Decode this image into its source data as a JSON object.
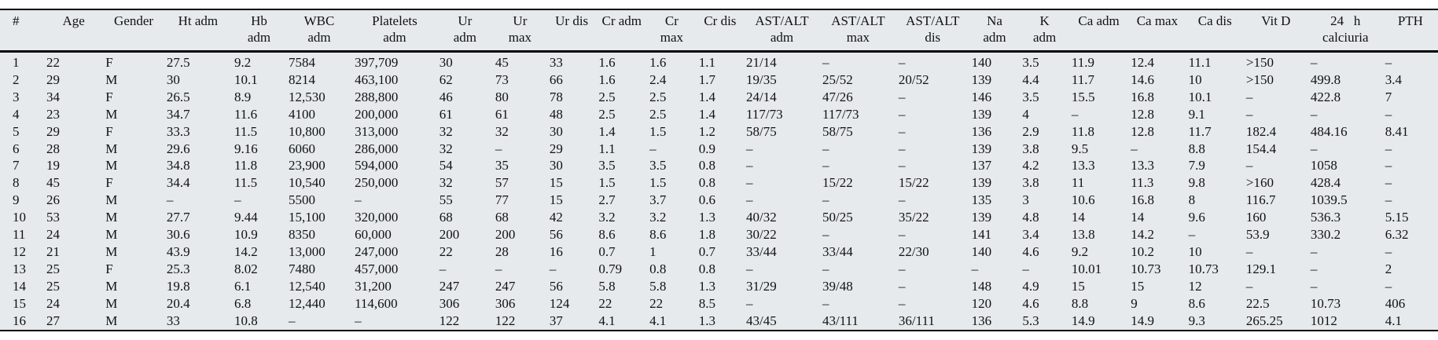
{
  "colors": {
    "table_background": "#e6eaec",
    "rule_color": "#000000",
    "text_color": "#111111",
    "page_background": "#ffffff"
  },
  "table": {
    "columns": [
      {
        "id": "num",
        "line1": "#",
        "line2": ""
      },
      {
        "id": "age",
        "line1": "Age",
        "line2": ""
      },
      {
        "id": "gender",
        "line1": "Gender",
        "line2": ""
      },
      {
        "id": "ht-adm",
        "line1": "Ht adm",
        "line2": ""
      },
      {
        "id": "hb-adm",
        "line1": "Hb",
        "line2": "adm"
      },
      {
        "id": "wbc-adm",
        "line1": "WBC",
        "line2": "adm"
      },
      {
        "id": "platelets-adm",
        "line1": "Platelets",
        "line2": "adm"
      },
      {
        "id": "ur-adm",
        "line1": "Ur",
        "line2": "adm"
      },
      {
        "id": "ur-max",
        "line1": "Ur",
        "line2": "max"
      },
      {
        "id": "ur-dis",
        "line1": "Ur dis",
        "line2": ""
      },
      {
        "id": "cr-adm",
        "line1": "Cr adm",
        "line2": ""
      },
      {
        "id": "cr-max",
        "line1": "Cr",
        "line2": "max"
      },
      {
        "id": "cr-dis",
        "line1": "Cr dis",
        "line2": ""
      },
      {
        "id": "ast-alt-adm",
        "line1": "AST/ALT",
        "line2": "adm"
      },
      {
        "id": "ast-alt-max",
        "line1": "AST/ALT",
        "line2": "max"
      },
      {
        "id": "ast-alt-dis",
        "line1": "AST/ALT",
        "line2": "dis"
      },
      {
        "id": "na-adm",
        "line1": "Na",
        "line2": "adm"
      },
      {
        "id": "k-adm",
        "line1": "K",
        "line2": "adm"
      },
      {
        "id": "ca-adm",
        "line1": "Ca adm",
        "line2": ""
      },
      {
        "id": "ca-max",
        "line1": "Ca max",
        "line2": ""
      },
      {
        "id": "ca-dis",
        "line1": "Ca dis",
        "line2": ""
      },
      {
        "id": "vit-d",
        "line1": "Vit D",
        "line2": ""
      },
      {
        "id": "calciuria-24h",
        "line1": "24   h",
        "line2": "calciuria"
      },
      {
        "id": "pth",
        "line1": "PTH",
        "line2": ""
      }
    ],
    "rows": [
      [
        "1",
        "22",
        "F",
        "27.5",
        "9.2",
        "7584",
        "397,709",
        "30",
        "45",
        "33",
        "1.6",
        "1.6",
        "1.1",
        "21/14",
        "–",
        "–",
        "140",
        "3.5",
        "11.9",
        "12.4",
        "11.1",
        ">150",
        "–",
        "–"
      ],
      [
        "2",
        "29",
        "M",
        "30",
        "10.1",
        "8214",
        "463,100",
        "62",
        "73",
        "66",
        "1.6",
        "2.4",
        "1.7",
        "19/35",
        "25/52",
        "20/52",
        "139",
        "4.4",
        "11.7",
        "14.6",
        "10",
        ">150",
        "499.8",
        "3.4"
      ],
      [
        "3",
        "34",
        "F",
        "26.5",
        "8.9",
        "12,530",
        "288,800",
        "46",
        "80",
        "78",
        "2.5",
        "2.5",
        "1.4",
        "24/14",
        "47/26",
        "–",
        "146",
        "3.5",
        "15.5",
        "16.8",
        "10.1",
        "–",
        "422.8",
        "7"
      ],
      [
        "4",
        "23",
        "M",
        "34.7",
        "11.6",
        "4100",
        "200,000",
        "61",
        "61",
        "48",
        "2.5",
        "2.5",
        "1.4",
        "117/73",
        "117/73",
        "–",
        "139",
        "4",
        "–",
        "12.8",
        "9.1",
        "–",
        "–",
        "–"
      ],
      [
        "5",
        "29",
        "F",
        "33.3",
        "11.5",
        "10,800",
        "313,000",
        "32",
        "32",
        "30",
        "1.4",
        "1.5",
        "1.2",
        "58/75",
        "58/75",
        "–",
        "136",
        "2.9",
        "11.8",
        "12.8",
        "11.7",
        "182.4",
        "484.16",
        "8.41"
      ],
      [
        "6",
        "28",
        "M",
        "29.6",
        "9.16",
        "6060",
        "286,000",
        "32",
        "–",
        "29",
        "1.1",
        "–",
        "0.9",
        "–",
        "–",
        "–",
        "139",
        "3.8",
        "9.5",
        "–",
        "8.8",
        "154.4",
        "–",
        "–"
      ],
      [
        "7",
        "19",
        "M",
        "34.8",
        "11.8",
        "23,900",
        "594,000",
        "54",
        "35",
        "30",
        "3.5",
        "3.5",
        "0.8",
        "–",
        "–",
        "–",
        "137",
        "4.2",
        "13.3",
        "13.3",
        "7.9",
        "–",
        "1058",
        "–"
      ],
      [
        "8",
        "45",
        "F",
        "34.4",
        "11.5",
        "10,540",
        "250,000",
        "32",
        "57",
        "15",
        "1.5",
        "1.5",
        "0.8",
        "–",
        "15/22",
        "15/22",
        "139",
        "3.8",
        "11",
        "11.3",
        "9.8",
        ">160",
        "428.4",
        "–"
      ],
      [
        "9",
        "26",
        "M",
        "–",
        "–",
        "5500",
        "–",
        "55",
        "77",
        "15",
        "2.7",
        "3.7",
        "0.6",
        "–",
        "–",
        "–",
        "135",
        "3",
        "10.6",
        "16.8",
        "8",
        "116.7",
        "1039.5",
        "–"
      ],
      [
        "10",
        "53",
        "M",
        "27.7",
        "9.44",
        "15,100",
        "320,000",
        "68",
        "68",
        "42",
        "3.2",
        "3.2",
        "1.3",
        "40/32",
        "50/25",
        "35/22",
        "139",
        "4.8",
        "14",
        "14",
        "9.6",
        "160",
        "536.3",
        "5.15"
      ],
      [
        "11",
        "24",
        "M",
        "30.6",
        "10.9",
        "8350",
        "60,000",
        "200",
        "200",
        "56",
        "8.6",
        "8.6",
        "1.8",
        "30/22",
        "–",
        "–",
        "141",
        "3.4",
        "13.8",
        "14.2",
        "–",
        "53.9",
        "330.2",
        "6.32"
      ],
      [
        "12",
        "21",
        "M",
        "43.9",
        "14.2",
        "13,000",
        "247,000",
        "22",
        "28",
        "16",
        "0.7",
        "1",
        "0.7",
        "33/44",
        "33/44",
        "22/30",
        "140",
        "4.6",
        "9.2",
        "10.2",
        "10",
        "–",
        "–",
        "–"
      ],
      [
        "13",
        "25",
        "F",
        "25.3",
        "8.02",
        "7480",
        "457,000",
        "–",
        "–",
        "–",
        "0.79",
        "0.8",
        "0.8",
        "–",
        "–",
        "–",
        "–",
        "–",
        "10.01",
        "10.73",
        "10.73",
        "129.1",
        "–",
        "2"
      ],
      [
        "14",
        "25",
        "M",
        "19.8",
        "6.1",
        "12,540",
        "31,200",
        "247",
        "247",
        "56",
        "5.8",
        "5.8",
        "1.3",
        "31/29",
        "39/48",
        "–",
        "148",
        "4.9",
        "15",
        "15",
        "12",
        "–",
        "–",
        "–"
      ],
      [
        "15",
        "24",
        "M",
        "20.4",
        "6.8",
        "12,440",
        "114,600",
        "306",
        "306",
        "124",
        "22",
        "22",
        "8.5",
        "–",
        "–",
        "–",
        "120",
        "4.6",
        "8.8",
        "9",
        "8.6",
        "22.5",
        "10.73",
        "406"
      ],
      [
        "16",
        "27",
        "M",
        "33",
        "10.8",
        "–",
        "–",
        "122",
        "122",
        "37",
        "4.1",
        "4.1",
        "1.3",
        "43/45",
        "43/111",
        "36/111",
        "136",
        "5.3",
        "14.9",
        "14.9",
        "9.3",
        "265.25",
        "1012",
        "4.1"
      ]
    ]
  }
}
